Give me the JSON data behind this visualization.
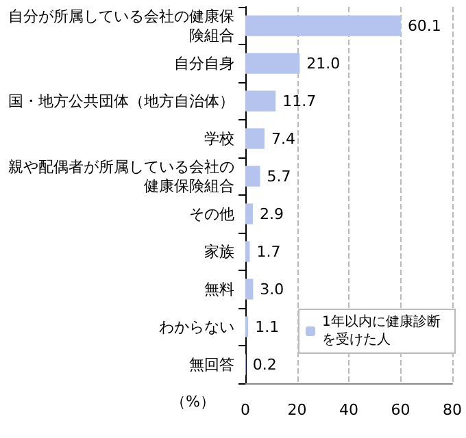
{
  "chart_data": {
    "type": "bar",
    "orientation": "horizontal",
    "categories": [
      "自分が所属している会社の健康保険組合",
      "自分自身",
      "国・地方公共団体（地方自治体）",
      "学校",
      "親や配偶者が所属している会社の健康保険組合",
      "その他",
      "家族",
      "無料",
      "わからない",
      "無回答"
    ],
    "series": [
      {
        "name": "1年以内に健康診断を受けた人",
        "color": "#b4c4ee",
        "values": [
          60.1,
          21.0,
          11.7,
          7.4,
          5.7,
          2.9,
          1.7,
          3.0,
          1.1,
          0.2
        ],
        "value_labels": [
          "60.1",
          "21.0",
          "11.7",
          "7.4",
          "5.7",
          "2.9",
          "1.7",
          "3.0",
          "1.1",
          "0.2"
        ]
      }
    ],
    "xlabel": "（%）",
    "xlim": [
      0,
      80
    ],
    "xticks": [
      0,
      20,
      40,
      60,
      80
    ],
    "grid": "x",
    "legend": "bottom right"
  }
}
